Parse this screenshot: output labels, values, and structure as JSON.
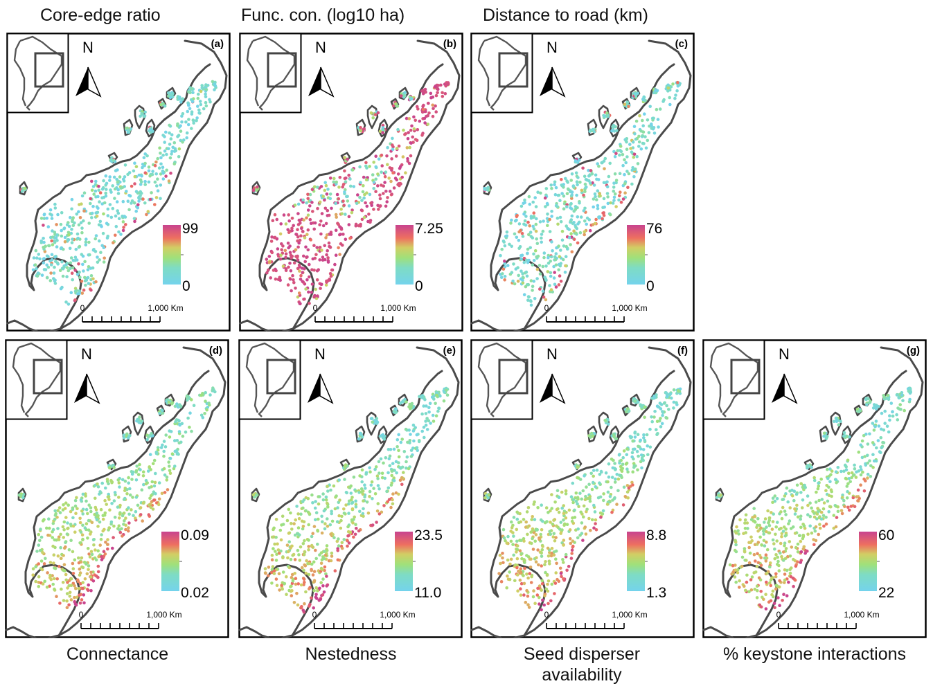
{
  "figure": {
    "north_label": "N",
    "scale_start": "0",
    "scale_end": "1,000 Km",
    "panels": [
      {
        "id": "a",
        "label": "(a)",
        "title": "Core-edge ratio",
        "legend_max": "99",
        "legend_min": "0",
        "mode": "low-dominant"
      },
      {
        "id": "b",
        "label": "(b)",
        "title": "Func. con. (log10 ha)",
        "legend_max": "7.25",
        "legend_min": "0",
        "mode": "high-dominant"
      },
      {
        "id": "c",
        "label": "(c)",
        "title": "Distance to road (km)",
        "legend_max": "76",
        "legend_min": "0",
        "mode": "low-dominant"
      },
      {
        "id": "d",
        "label": "(d)",
        "title": "Connectance",
        "legend_max": "0.09",
        "legend_min": "0.02",
        "mode": "gradient"
      },
      {
        "id": "e",
        "label": "(e)",
        "title": "Nestedness",
        "legend_max": "23.5",
        "legend_min": "11.0",
        "mode": "gradient"
      },
      {
        "id": "f",
        "label": "(f)",
        "title": "Seed disperser availability",
        "legend_max": "8.8",
        "legend_min": "1.3",
        "mode": "gradient"
      },
      {
        "id": "g",
        "label": "(g)",
        "title": "% keystone interactions",
        "legend_max": "60",
        "legend_min": "22",
        "mode": "gradient"
      }
    ]
  },
  "colors": {
    "outline": "#4a4a4a",
    "scale_low": "#74d3ec",
    "scale_mid": "#9ee07a",
    "scale_high": "#c8438e"
  }
}
